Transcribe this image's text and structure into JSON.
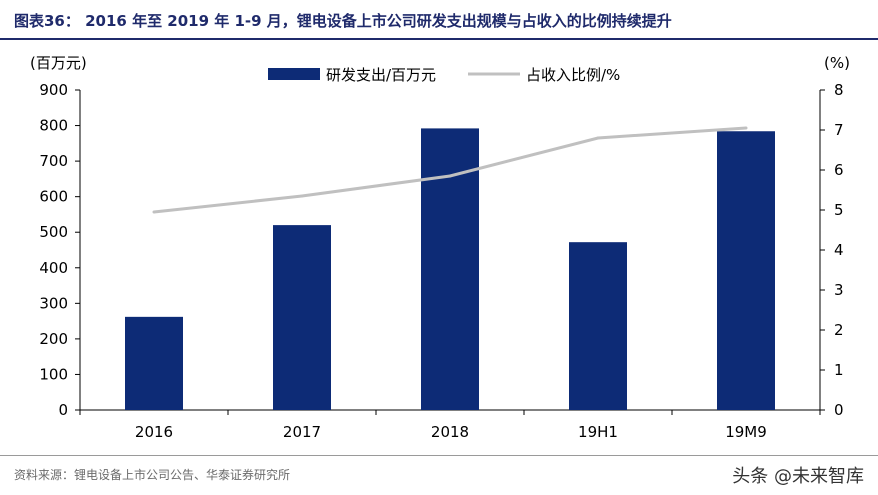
{
  "title": "图表36：  2016 年至 2019 年 1-9 月，锂电设备上市公司研发支出规模与占收入的比例持续提升",
  "source": "资料来源：锂电设备上市公司公告、华泰证券研究所",
  "watermark": "头条 @未来智库",
  "colors": {
    "bar": "#0d2b76",
    "line": "#c0c0c0",
    "title": "#1f2a6b"
  },
  "chart_data": {
    "type": "bar",
    "categories": [
      "2016",
      "2017",
      "2018",
      "19H1",
      "19M9"
    ],
    "series": [
      {
        "name": "研发支出/百万元",
        "type": "bar",
        "axis": "left",
        "values": [
          262,
          520,
          792,
          472,
          784
        ]
      },
      {
        "name": "占收入比例/%",
        "type": "line",
        "axis": "right",
        "values": [
          4.95,
          5.35,
          5.85,
          6.8,
          7.05
        ]
      }
    ],
    "yleft_unit": "(百万元)",
    "yright_unit": "(%)",
    "yleft_lim": [
      0,
      900
    ],
    "yleft_ticks": [
      "0",
      "100",
      "200",
      "300",
      "400",
      "500",
      "600",
      "700",
      "800",
      "900"
    ],
    "yright_lim": [
      0,
      8
    ],
    "yright_ticks": [
      "0",
      "1",
      "2",
      "3",
      "4",
      "5",
      "6",
      "7",
      "8"
    ],
    "legend_position": "top-center",
    "grid": false
  }
}
